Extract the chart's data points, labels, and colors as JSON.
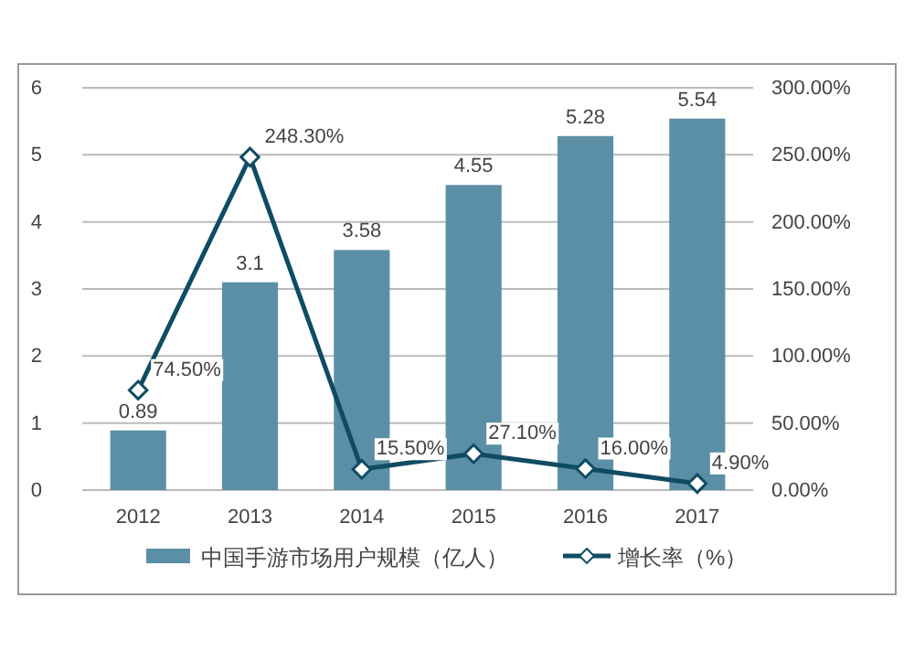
{
  "chart_data": {
    "type": "bar",
    "categories": [
      "2012",
      "2013",
      "2014",
      "2015",
      "2016",
      "2017"
    ],
    "series": [
      {
        "name": "中国手游市场用户规模（亿人）",
        "color": "#5b8fa6",
        "values": [
          0.89,
          3.1,
          3.58,
          4.55,
          5.28,
          5.54
        ],
        "value_labels": [
          "0.89",
          "3.1",
          "3.58",
          "4.55",
          "5.28",
          "5.54"
        ]
      },
      {
        "name": "增长率（%）",
        "type": "line",
        "axis": "y2",
        "color": "#0f4c63",
        "marker": "diamond",
        "values": [
          74.5,
          248.3,
          15.5,
          27.1,
          16.0,
          4.9
        ],
        "value_labels": [
          "74.50%",
          "248.30%",
          "15.50%",
          "27.10%",
          "16.00%",
          "4.90%"
        ]
      }
    ],
    "ylim": [
      0,
      6
    ],
    "yticks": [
      0,
      1,
      2,
      3,
      4,
      5,
      6
    ],
    "y2lim": [
      0,
      300
    ],
    "y2ticks": [
      {
        "value": 0,
        "label": "0.00%"
      },
      {
        "value": 50,
        "label": "50.00%"
      },
      {
        "value": 100,
        "label": "100.00%"
      },
      {
        "value": 150,
        "label": "150.00%"
      },
      {
        "value": 200,
        "label": "200.00%"
      },
      {
        "value": 250,
        "label": "250.00%"
      },
      {
        "value": 300,
        "label": "300.00%"
      }
    ],
    "grid": "y",
    "legend": "bottom"
  }
}
